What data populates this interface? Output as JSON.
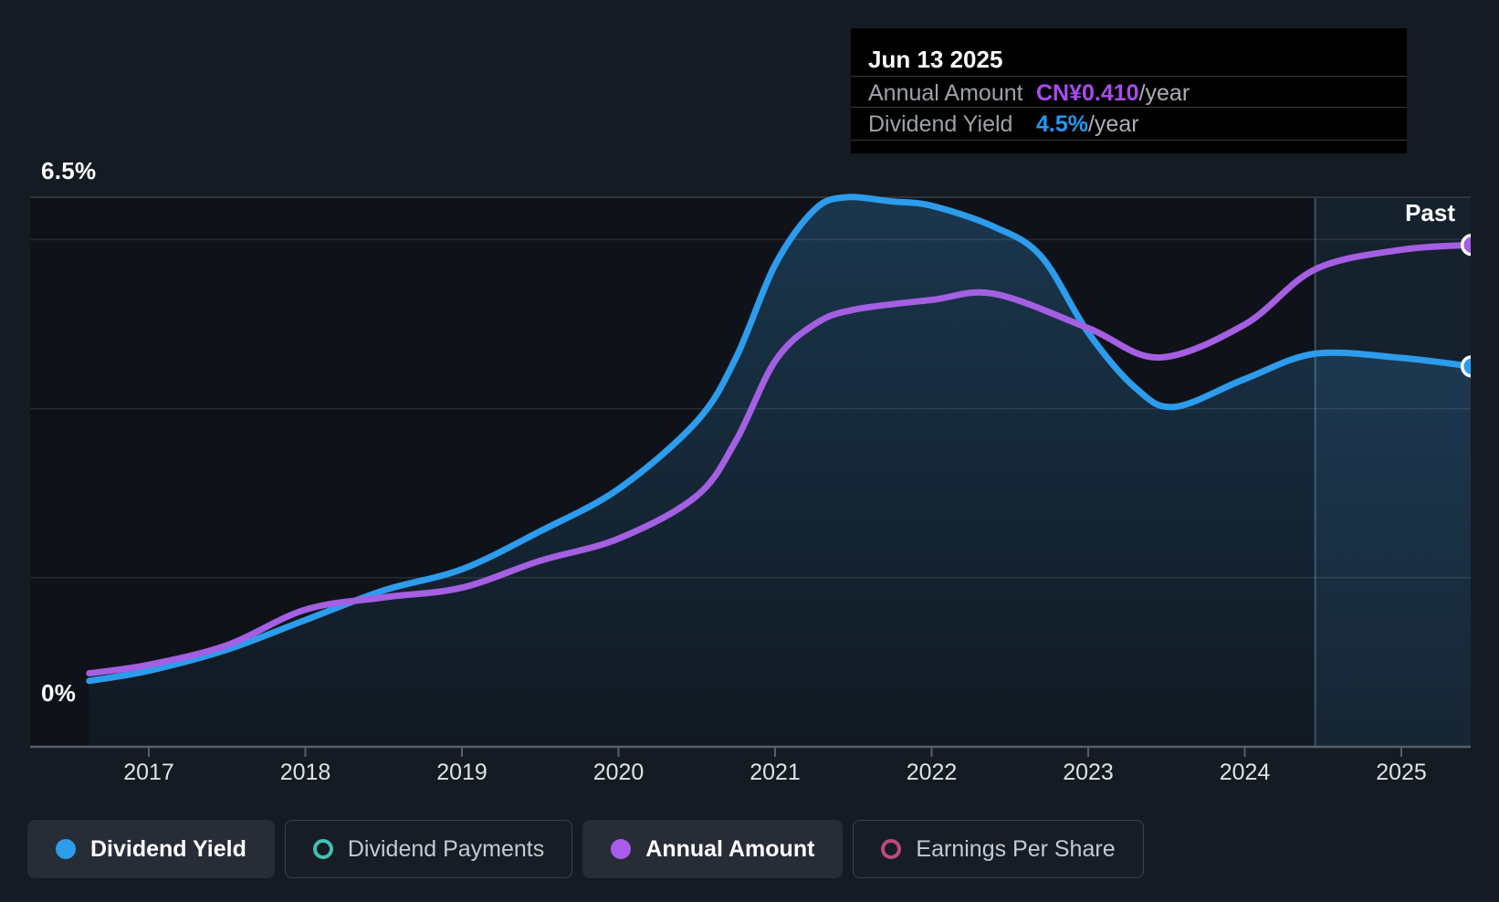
{
  "page": {
    "background": "#151B23"
  },
  "tooltip": {
    "date": "Jun 13 2025",
    "rows": [
      {
        "label": "Annual Amount",
        "value": "CN¥0.410",
        "suffix": "/year",
        "value_color": "#A94BEE"
      },
      {
        "label": "Dividend Yield",
        "value": "4.5%",
        "suffix": "/year",
        "value_color": "#1E9BF2"
      }
    ]
  },
  "chart_data": {
    "type": "line",
    "title": "",
    "y_axis": {
      "top_label": "6.5%",
      "bottom_label": "0%",
      "yield_range_pct": [
        0,
        6.5
      ],
      "gridlines_yield_pct": [
        6.5,
        6,
        4,
        2,
        0
      ],
      "grid": true
    },
    "x_axis": {
      "ticks": [
        "2017",
        "2018",
        "2019",
        "2020",
        "2021",
        "2022",
        "2023",
        "2024",
        "2025"
      ],
      "range_years": [
        2016.62,
        2025.45
      ]
    },
    "past_label": "Past",
    "past_band_start_year": 2024.45,
    "series": [
      {
        "name": "Dividend Yield",
        "unit": "percent_per_year",
        "color": "#2D9CEC",
        "area_fill": true,
        "end_value_label": "4.5%/year",
        "points": [
          [
            2016.62,
            0.78
          ],
          [
            2017.0,
            0.9
          ],
          [
            2017.5,
            1.15
          ],
          [
            2018.0,
            1.5
          ],
          [
            2018.5,
            1.85
          ],
          [
            2019.0,
            2.1
          ],
          [
            2019.5,
            2.55
          ],
          [
            2020.0,
            3.05
          ],
          [
            2020.5,
            3.85
          ],
          [
            2020.75,
            4.6
          ],
          [
            2021.0,
            5.7
          ],
          [
            2021.25,
            6.35
          ],
          [
            2021.45,
            6.5
          ],
          [
            2021.75,
            6.45
          ],
          [
            2022.0,
            6.4
          ],
          [
            2022.4,
            6.15
          ],
          [
            2022.7,
            5.8
          ],
          [
            2023.0,
            4.9
          ],
          [
            2023.3,
            4.25
          ],
          [
            2023.55,
            4.02
          ],
          [
            2024.0,
            4.35
          ],
          [
            2024.45,
            4.65
          ],
          [
            2025.0,
            4.6
          ],
          [
            2025.45,
            4.5
          ]
        ]
      },
      {
        "name": "Annual Amount",
        "unit": "CNY_per_year",
        "color": "#A45FE2",
        "area_fill": false,
        "end_value_label": "CN¥0.410/year",
        "points": [
          [
            2016.62,
            0.06
          ],
          [
            2017.0,
            0.067
          ],
          [
            2017.5,
            0.083
          ],
          [
            2018.0,
            0.112
          ],
          [
            2018.5,
            0.122
          ],
          [
            2019.0,
            0.13
          ],
          [
            2019.5,
            0.152
          ],
          [
            2020.0,
            0.17
          ],
          [
            2020.5,
            0.205
          ],
          [
            2020.75,
            0.25
          ],
          [
            2021.0,
            0.315
          ],
          [
            2021.25,
            0.345
          ],
          [
            2021.5,
            0.357
          ],
          [
            2022.0,
            0.365
          ],
          [
            2022.4,
            0.37
          ],
          [
            2023.0,
            0.342
          ],
          [
            2023.45,
            0.318
          ],
          [
            2024.0,
            0.345
          ],
          [
            2024.45,
            0.39
          ],
          [
            2025.0,
            0.406
          ],
          [
            2025.45,
            0.41
          ]
        ]
      }
    ]
  },
  "legend": [
    {
      "label": "Dividend Yield",
      "marker": "dot",
      "color": "#2D9CEC",
      "active": true
    },
    {
      "label": "Dividend Payments",
      "marker": "ring",
      "color": "#43C0B3",
      "active": false
    },
    {
      "label": "Annual Amount",
      "marker": "dot",
      "color": "#A85BEC",
      "active": true
    },
    {
      "label": "Earnings Per Share",
      "marker": "ring",
      "color": "#BE4A7E",
      "active": false
    }
  ]
}
